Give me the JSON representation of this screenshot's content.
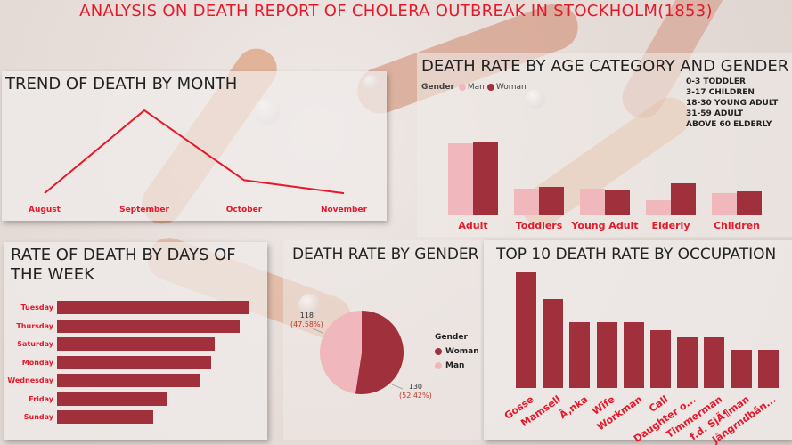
{
  "title": "ANALYSIS ON DEATH REPORT OF CHOLERA OUTBREAK IN STOCKHOLM(1853)",
  "colors": {
    "accent_red": "#e5192a",
    "woman": "#a0303c",
    "man": "#f0b8bc",
    "bar": "#a0303c"
  },
  "chart_data": [
    {
      "type": "line",
      "title": "TREND OF DEATH BY MONTH",
      "categories": [
        "August",
        "September",
        "October",
        "November"
      ],
      "values": [
        5,
        100,
        20,
        5
      ],
      "grid": false
    },
    {
      "type": "bar",
      "title": "DEATH RATE BY AGE CATEGORY AND GENDER",
      "legend_title": "Gender",
      "categories": [
        "Adult",
        "Toddlers",
        "Young Adult",
        "Elderly",
        "Children"
      ],
      "series": [
        {
          "name": "Man",
          "values": [
            81,
            30,
            30,
            17,
            25
          ]
        },
        {
          "name": "Woman",
          "values": [
            83,
            32,
            28,
            36,
            27
          ]
        }
      ],
      "ylim": [
        0,
        100
      ],
      "legend_position": "top-left",
      "notes": [
        "0-3 TODDLER",
        "3-17 CHILDREN",
        "18-30 YOUNG ADULT",
        "31-59 ADULT",
        "ABOVE 60 ELDERLY"
      ]
    },
    {
      "type": "bar",
      "orientation": "horizontal",
      "title": "RATE OF DEATH BY DAYS OF THE WEEK",
      "categories": [
        "Tuesday",
        "Thursday",
        "Saturday",
        "Monday",
        "Wednesday",
        "Friday",
        "Sunday"
      ],
      "values": [
        100,
        95,
        82,
        80,
        74,
        57,
        50
      ]
    },
    {
      "type": "pie",
      "title": "DEATH RATE BY GENDER",
      "legend_title": "Gender",
      "labels": [
        "Woman",
        "Man"
      ],
      "values": [
        130,
        118
      ],
      "percent_labels": [
        "(52.42%)",
        "(47.58%)"
      ],
      "legend_position": "right"
    },
    {
      "type": "bar",
      "title": "TOP 10 DEATH RATE BY OCCUPATION",
      "categories": [
        "Gosse",
        "Mamsell",
        "Ã‚nka",
        "Wife",
        "Workman",
        "Call",
        "Daughter o...",
        "Timmerman",
        "f.d. SjÃ¶man",
        "Jängrndbän..."
      ],
      "values": [
        100,
        77,
        57,
        57,
        57,
        50,
        44,
        44,
        33,
        33
      ]
    }
  ]
}
